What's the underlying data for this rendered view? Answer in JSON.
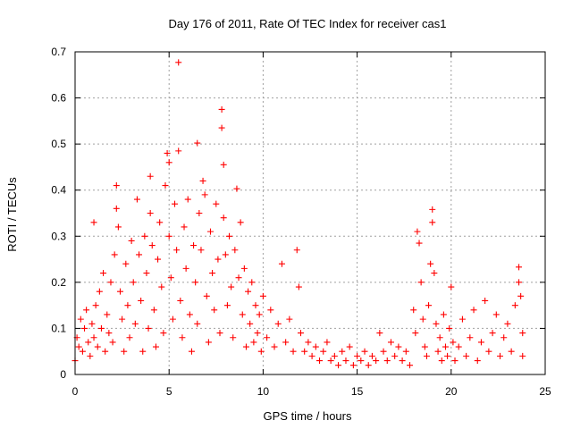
{
  "chart_data": {
    "type": "scatter",
    "title": "Day 176 of 2011, Rate Of TEC Index for receiver cas1",
    "xlabel": "GPS time / hours",
    "ylabel": "ROTI / TECUs",
    "xlim": [
      0,
      25
    ],
    "ylim": [
      0,
      0.7
    ],
    "xticks": [
      "0",
      "5",
      "10",
      "15",
      "20",
      "25"
    ],
    "yticks": [
      "0",
      "0.1",
      "0.2",
      "0.3",
      "0.4",
      "0.5",
      "0.6",
      "0.7"
    ],
    "grid": true,
    "marker": "plus",
    "color": "#ff0000",
    "series": [
      {
        "points": [
          [
            0.0,
            0.03
          ],
          [
            0.1,
            0.08
          ],
          [
            0.2,
            0.06
          ],
          [
            0.3,
            0.12
          ],
          [
            0.4,
            0.05
          ],
          [
            0.5,
            0.1
          ],
          [
            0.6,
            0.14
          ],
          [
            0.7,
            0.07
          ],
          [
            0.8,
            0.04
          ],
          [
            0.9,
            0.11
          ],
          [
            1.0,
            0.33
          ],
          [
            1.0,
            0.08
          ],
          [
            1.1,
            0.15
          ],
          [
            1.2,
            0.06
          ],
          [
            1.3,
            0.18
          ],
          [
            1.4,
            0.1
          ],
          [
            1.5,
            0.22
          ],
          [
            1.6,
            0.05
          ],
          [
            1.7,
            0.13
          ],
          [
            1.8,
            0.09
          ],
          [
            1.9,
            0.2
          ],
          [
            2.0,
            0.07
          ],
          [
            2.1,
            0.26
          ],
          [
            2.2,
            0.41
          ],
          [
            2.2,
            0.36
          ],
          [
            2.3,
            0.32
          ],
          [
            2.4,
            0.18
          ],
          [
            2.5,
            0.12
          ],
          [
            2.6,
            0.05
          ],
          [
            2.7,
            0.24
          ],
          [
            2.8,
            0.15
          ],
          [
            2.9,
            0.08
          ],
          [
            3.0,
            0.29
          ],
          [
            3.1,
            0.2
          ],
          [
            3.2,
            0.11
          ],
          [
            3.3,
            0.38
          ],
          [
            3.4,
            0.26
          ],
          [
            3.5,
            0.16
          ],
          [
            3.6,
            0.05
          ],
          [
            3.7,
            0.3
          ],
          [
            3.8,
            0.22
          ],
          [
            3.9,
            0.1
          ],
          [
            4.0,
            0.43
          ],
          [
            4.0,
            0.35
          ],
          [
            4.1,
            0.28
          ],
          [
            4.2,
            0.14
          ],
          [
            4.3,
            0.06
          ],
          [
            4.4,
            0.25
          ],
          [
            4.5,
            0.33
          ],
          [
            4.6,
            0.19
          ],
          [
            4.7,
            0.09
          ],
          [
            4.8,
            0.41
          ],
          [
            4.9,
            0.48
          ],
          [
            5.0,
            0.46
          ],
          [
            5.0,
            0.3
          ],
          [
            5.1,
            0.21
          ],
          [
            5.2,
            0.12
          ],
          [
            5.3,
            0.37
          ],
          [
            5.4,
            0.27
          ],
          [
            5.5,
            0.677
          ],
          [
            5.5,
            0.485
          ],
          [
            5.6,
            0.16
          ],
          [
            5.7,
            0.08
          ],
          [
            5.8,
            0.32
          ],
          [
            5.9,
            0.23
          ],
          [
            6.0,
            0.38
          ],
          [
            6.1,
            0.13
          ],
          [
            6.2,
            0.05
          ],
          [
            6.3,
            0.28
          ],
          [
            6.4,
            0.2
          ],
          [
            6.5,
            0.502
          ],
          [
            6.5,
            0.11
          ],
          [
            6.6,
            0.35
          ],
          [
            6.7,
            0.27
          ],
          [
            6.8,
            0.42
          ],
          [
            6.9,
            0.39
          ],
          [
            7.0,
            0.17
          ],
          [
            7.1,
            0.07
          ],
          [
            7.2,
            0.31
          ],
          [
            7.3,
            0.22
          ],
          [
            7.4,
            0.14
          ],
          [
            7.5,
            0.37
          ],
          [
            7.6,
            0.25
          ],
          [
            7.7,
            0.09
          ],
          [
            7.8,
            0.575
          ],
          [
            7.8,
            0.535
          ],
          [
            7.9,
            0.455
          ],
          [
            7.9,
            0.34
          ],
          [
            8.0,
            0.26
          ],
          [
            8.1,
            0.15
          ],
          [
            8.2,
            0.3
          ],
          [
            8.3,
            0.19
          ],
          [
            8.4,
            0.08
          ],
          [
            8.5,
            0.27
          ],
          [
            8.6,
            0.403
          ],
          [
            8.7,
            0.21
          ],
          [
            8.8,
            0.33
          ],
          [
            8.9,
            0.13
          ],
          [
            9.0,
            0.23
          ],
          [
            9.1,
            0.06
          ],
          [
            9.2,
            0.18
          ],
          [
            9.3,
            0.11
          ],
          [
            9.4,
            0.2
          ],
          [
            9.5,
            0.07
          ],
          [
            9.6,
            0.15
          ],
          [
            9.7,
            0.09
          ],
          [
            9.8,
            0.13
          ],
          [
            9.9,
            0.05
          ],
          [
            10.0,
            0.17
          ],
          [
            10.2,
            0.08
          ],
          [
            10.4,
            0.14
          ],
          [
            10.6,
            0.06
          ],
          [
            10.8,
            0.11
          ],
          [
            11.0,
            0.24
          ],
          [
            11.2,
            0.07
          ],
          [
            11.4,
            0.12
          ],
          [
            11.6,
            0.05
          ],
          [
            11.8,
            0.27
          ],
          [
            11.9,
            0.19
          ],
          [
            12.0,
            0.09
          ],
          [
            12.2,
            0.05
          ],
          [
            12.4,
            0.07
          ],
          [
            12.6,
            0.04
          ],
          [
            12.8,
            0.06
          ],
          [
            13.0,
            0.03
          ],
          [
            13.2,
            0.05
          ],
          [
            13.4,
            0.07
          ],
          [
            13.6,
            0.03
          ],
          [
            13.8,
            0.04
          ],
          [
            14.0,
            0.02
          ],
          [
            14.2,
            0.05
          ],
          [
            14.4,
            0.03
          ],
          [
            14.6,
            0.06
          ],
          [
            14.8,
            0.02
          ],
          [
            15.0,
            0.04
          ],
          [
            15.2,
            0.03
          ],
          [
            15.4,
            0.05
          ],
          [
            15.6,
            0.02
          ],
          [
            15.8,
            0.04
          ],
          [
            16.0,
            0.03
          ],
          [
            16.2,
            0.09
          ],
          [
            16.4,
            0.05
          ],
          [
            16.6,
            0.03
          ],
          [
            16.8,
            0.07
          ],
          [
            17.0,
            0.04
          ],
          [
            17.2,
            0.06
          ],
          [
            17.4,
            0.03
          ],
          [
            17.6,
            0.05
          ],
          [
            17.8,
            0.02
          ],
          [
            18.0,
            0.14
          ],
          [
            18.1,
            0.09
          ],
          [
            18.2,
            0.31
          ],
          [
            18.3,
            0.285
          ],
          [
            18.4,
            0.2
          ],
          [
            18.5,
            0.12
          ],
          [
            18.6,
            0.06
          ],
          [
            18.7,
            0.04
          ],
          [
            18.8,
            0.15
          ],
          [
            18.9,
            0.24
          ],
          [
            19.0,
            0.358
          ],
          [
            19.0,
            0.33
          ],
          [
            19.1,
            0.22
          ],
          [
            19.2,
            0.11
          ],
          [
            19.3,
            0.05
          ],
          [
            19.4,
            0.08
          ],
          [
            19.5,
            0.03
          ],
          [
            19.6,
            0.13
          ],
          [
            19.7,
            0.06
          ],
          [
            19.8,
            0.04
          ],
          [
            19.9,
            0.1
          ],
          [
            20.0,
            0.19
          ],
          [
            20.1,
            0.07
          ],
          [
            20.2,
            0.03
          ],
          [
            20.4,
            0.06
          ],
          [
            20.6,
            0.12
          ],
          [
            20.8,
            0.04
          ],
          [
            21.0,
            0.08
          ],
          [
            21.2,
            0.14
          ],
          [
            21.4,
            0.03
          ],
          [
            21.6,
            0.07
          ],
          [
            21.8,
            0.16
          ],
          [
            22.0,
            0.05
          ],
          [
            22.2,
            0.09
          ],
          [
            22.4,
            0.13
          ],
          [
            22.6,
            0.04
          ],
          [
            22.8,
            0.08
          ],
          [
            23.0,
            0.11
          ],
          [
            23.2,
            0.05
          ],
          [
            23.4,
            0.15
          ],
          [
            23.6,
            0.233
          ],
          [
            23.6,
            0.2
          ],
          [
            23.7,
            0.17
          ],
          [
            23.8,
            0.09
          ],
          [
            23.8,
            0.04
          ]
        ]
      }
    ]
  }
}
